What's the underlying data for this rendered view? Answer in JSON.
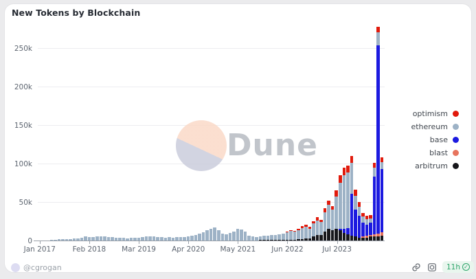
{
  "title": "New Tokens by Blockchain",
  "watermark": {
    "text": "Dune"
  },
  "footer": {
    "author": "@cgrogan",
    "age_badge": "11h",
    "icons": [
      "link-icon",
      "camera-icon",
      "verified-check-icon"
    ]
  },
  "colors": {
    "optimism": "#e11a0c",
    "ethereum": "#9db2c6",
    "base": "#1c1ae0",
    "blast": "#e7745e",
    "arbitrum": "#17171b",
    "badge_green": "#2ba469",
    "badge_bg": "#e9f6ee"
  },
  "chart_data": {
    "type": "bar",
    "stacked": true,
    "title": "New Tokens by Blockchain",
    "xlabel": "",
    "ylabel": "",
    "unit": "thousands of tokens per month",
    "x_start_month": "Jan 2017",
    "x_end_month": "Jul 2024",
    "x_tick_labels": [
      "Jan 2017",
      "Feb 2018",
      "Mar 2019",
      "Apr 2020",
      "May 2021",
      "Jun 2022",
      "Jul 2023"
    ],
    "x_tick_month_indices": [
      0,
      13,
      26,
      39,
      52,
      65,
      78
    ],
    "y_ticks": [
      "0",
      "50k",
      "100k",
      "150k",
      "200k",
      "250k"
    ],
    "y_tick_values_k": [
      0,
      50,
      100,
      150,
      200,
      250
    ],
    "ylim_k": [
      0,
      278
    ],
    "grid": true,
    "legend_position": "right",
    "legend_order": [
      "optimism",
      "ethereum",
      "base",
      "blast",
      "arbitrum"
    ],
    "stack_order_bottom_to_top": [
      "arbitrum",
      "blast",
      "base",
      "ethereum",
      "optimism"
    ],
    "series": [
      {
        "name": "arbitrum",
        "color": "#17171b",
        "values": [
          0,
          0,
          0,
          0,
          0,
          0,
          0,
          0,
          0,
          0,
          0,
          0,
          0,
          0,
          0,
          0,
          0,
          0,
          0,
          0,
          0,
          0,
          0,
          0,
          0,
          0,
          0,
          0,
          0,
          0,
          0,
          0,
          0,
          0,
          0,
          0,
          0,
          0,
          0,
          0,
          0,
          0,
          0,
          0,
          0,
          0,
          0,
          0,
          0,
          0,
          0,
          0,
          0,
          0,
          0,
          0,
          0.3,
          0.4,
          0.5,
          0.5,
          0.5,
          0.5,
          0.6,
          0.7,
          0.8,
          1,
          1.2,
          1.2,
          1.5,
          2,
          2.5,
          2.5,
          5,
          7,
          7,
          12,
          15,
          13,
          15,
          13,
          10,
          8,
          6,
          5,
          4,
          4,
          4,
          5,
          5,
          5,
          6
        ]
      },
      {
        "name": "blast",
        "color": "#e7745e",
        "values": [
          0,
          0,
          0,
          0,
          0,
          0,
          0,
          0,
          0,
          0,
          0,
          0,
          0,
          0,
          0,
          0,
          0,
          0,
          0,
          0,
          0,
          0,
          0,
          0,
          0,
          0,
          0,
          0,
          0,
          0,
          0,
          0,
          0,
          0,
          0,
          0,
          0,
          0,
          0,
          0,
          0,
          0,
          0,
          0,
          0,
          0,
          0,
          0,
          0,
          0,
          0,
          0,
          0,
          0,
          0,
          0,
          0,
          0,
          0,
          0,
          0,
          0,
          0,
          0,
          0,
          0,
          0,
          0,
          0,
          0,
          0,
          0,
          0,
          0,
          0,
          0,
          0,
          0,
          0,
          0,
          0,
          0,
          0,
          0,
          0,
          1,
          2,
          2,
          3,
          4,
          5
        ]
      },
      {
        "name": "base",
        "color": "#1c1ae0",
        "values": [
          0,
          0,
          0,
          0,
          0,
          0,
          0,
          0,
          0,
          0,
          0,
          0,
          0,
          0,
          0,
          0,
          0,
          0,
          0,
          0,
          0,
          0,
          0,
          0,
          0,
          0,
          0,
          0,
          0,
          0,
          0,
          0,
          0,
          0,
          0,
          0,
          0,
          0,
          0,
          0,
          0,
          0,
          0,
          0,
          0,
          0,
          0,
          0,
          0,
          0,
          0,
          0,
          0,
          0,
          0,
          0,
          0,
          0,
          0,
          0,
          0,
          0,
          0,
          0,
          0,
          0,
          0,
          0,
          0,
          0,
          0,
          0,
          0,
          0,
          0,
          0,
          0,
          0,
          0,
          2,
          5,
          8,
          55,
          35,
          28,
          18,
          15,
          16,
          75,
          245,
          82
        ]
      },
      {
        "name": "ethereum",
        "color": "#9db2c6",
        "values": [
          0.2,
          0.3,
          0.4,
          0.6,
          1,
          1.4,
          1.7,
          2,
          2.2,
          2.4,
          2.8,
          3.2,
          5,
          4.6,
          4.4,
          5,
          5.6,
          5.2,
          4.6,
          4.2,
          3.8,
          3.6,
          3.4,
          3,
          3.4,
          3.6,
          4,
          4.4,
          5,
          5.4,
          5,
          4.6,
          4.2,
          4,
          4.4,
          4,
          4.4,
          4.8,
          4.4,
          5,
          6,
          7.5,
          9,
          11,
          13,
          15,
          17,
          13,
          9,
          8,
          9.5,
          12,
          15,
          14,
          12,
          6,
          5,
          4.5,
          5,
          6,
          6,
          6.5,
          7,
          7.5,
          8.5,
          9.5,
          11,
          10,
          12,
          14,
          15,
          13,
          17,
          19,
          17,
          25,
          31,
          27,
          42,
          60,
          70,
          72,
          40,
          18,
          12,
          8,
          7,
          6,
          12,
          17,
          9
        ]
      },
      {
        "name": "optimism",
        "color": "#e11a0c",
        "values": [
          0,
          0,
          0,
          0,
          0,
          0,
          0,
          0,
          0,
          0,
          0,
          0,
          0,
          0,
          0,
          0,
          0,
          0,
          0,
          0,
          0,
          0,
          0,
          0,
          0,
          0,
          0,
          0,
          0,
          0,
          0,
          0,
          0,
          0,
          0,
          0,
          0,
          0,
          0,
          0,
          0,
          0,
          0,
          0,
          0,
          0,
          0,
          0,
          0,
          0,
          0,
          0,
          0,
          0,
          0,
          0,
          0,
          0,
          0,
          0,
          0,
          0,
          0,
          0,
          0,
          0.8,
          1.5,
          1.5,
          2,
          2.5,
          3,
          2.5,
          3,
          4,
          3,
          5,
          6,
          5,
          8,
          10,
          10,
          9,
          9,
          8,
          6,
          5,
          4,
          4,
          6,
          7,
          6
        ]
      }
    ]
  }
}
